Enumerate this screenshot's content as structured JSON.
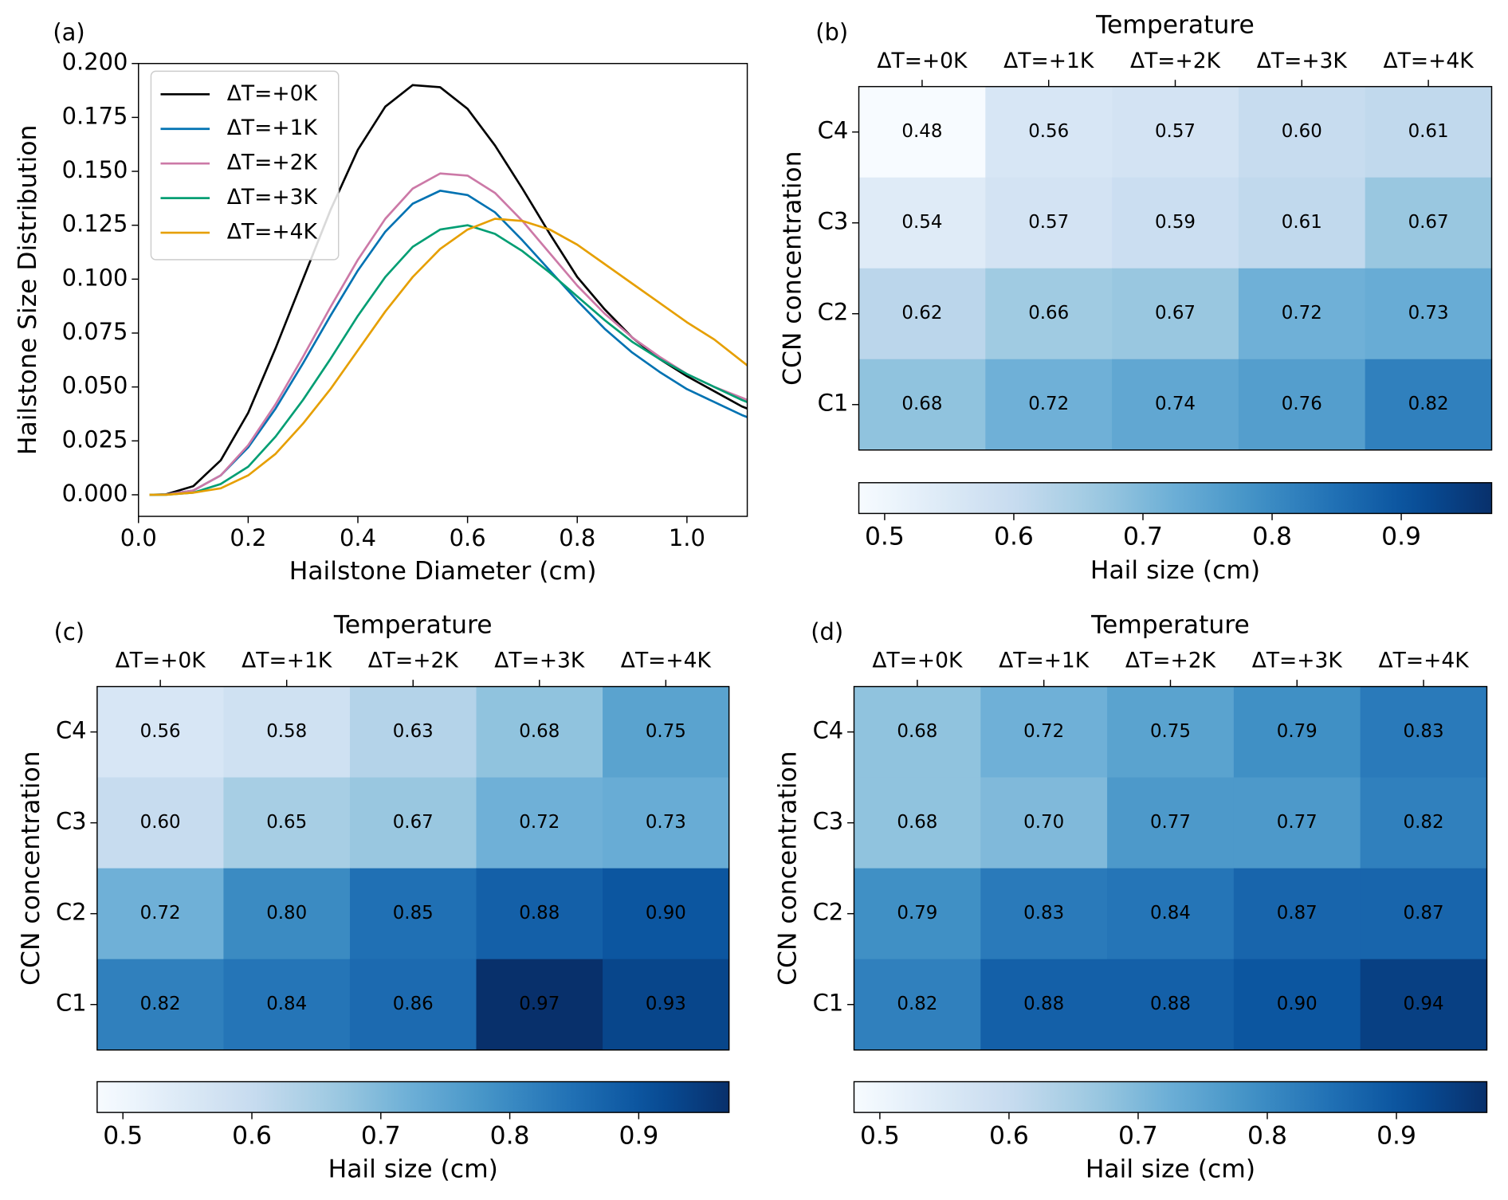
{
  "chart_data": [
    {
      "type": "line",
      "panel_label": "(a)",
      "xlabel": "Hailstone Diameter (cm)",
      "ylabel": "Hailstone Size Distribution",
      "x": [
        0.02,
        0.05,
        0.1,
        0.15,
        0.2,
        0.25,
        0.3,
        0.35,
        0.4,
        0.45,
        0.5,
        0.55,
        0.6,
        0.65,
        0.7,
        0.75,
        0.8,
        0.85,
        0.9,
        0.95,
        1.0,
        1.05,
        1.1,
        1.11
      ],
      "series": [
        {
          "name": "ΔT=+0K",
          "color": "#000000",
          "values": [
            0,
            0.0002,
            0.004,
            0.016,
            0.038,
            0.068,
            0.1,
            0.132,
            0.16,
            0.18,
            0.19,
            0.189,
            0.179,
            0.162,
            0.142,
            0.121,
            0.101,
            0.086,
            0.073,
            0.063,
            0.055,
            0.048,
            0.041,
            0.04
          ]
        },
        {
          "name": "ΔT=+1K",
          "color": "#0072b2",
          "values": [
            0,
            0.0001,
            0.002,
            0.009,
            0.022,
            0.04,
            0.061,
            0.083,
            0.104,
            0.122,
            0.135,
            0.141,
            0.139,
            0.131,
            0.118,
            0.104,
            0.09,
            0.077,
            0.066,
            0.057,
            0.049,
            0.043,
            0.037,
            0.036
          ]
        },
        {
          "name": "ΔT=+2K",
          "color": "#cc79a7",
          "values": [
            0,
            0.0001,
            0.002,
            0.009,
            0.023,
            0.042,
            0.064,
            0.087,
            0.109,
            0.128,
            0.142,
            0.149,
            0.148,
            0.14,
            0.127,
            0.112,
            0.097,
            0.084,
            0.073,
            0.064,
            0.056,
            0.05,
            0.045,
            0.044
          ]
        },
        {
          "name": "ΔT=+3K",
          "color": "#009e73",
          "values": [
            0,
            0,
            0.001,
            0.005,
            0.013,
            0.027,
            0.044,
            0.063,
            0.083,
            0.101,
            0.115,
            0.123,
            0.125,
            0.121,
            0.113,
            0.103,
            0.092,
            0.081,
            0.071,
            0.063,
            0.056,
            0.05,
            0.044,
            0.043
          ]
        },
        {
          "name": "ΔT=+4K",
          "color": "#e69f00",
          "values": [
            0,
            0,
            0.001,
            0.003,
            0.009,
            0.019,
            0.033,
            0.049,
            0.067,
            0.085,
            0.101,
            0.114,
            0.123,
            0.128,
            0.127,
            0.123,
            0.116,
            0.107,
            0.098,
            0.089,
            0.08,
            0.072,
            0.062,
            0.06
          ]
        }
      ],
      "xlim": [
        0,
        1.11
      ],
      "ylim": [
        -0.01,
        0.2
      ],
      "xticks": [
        {
          "value": 0,
          "label": "0.0"
        },
        {
          "value": 0.2,
          "label": "0.2"
        },
        {
          "value": 0.4,
          "label": "0.4"
        },
        {
          "value": 0.6,
          "label": "0.6"
        },
        {
          "value": 0.8,
          "label": "0.8"
        },
        {
          "value": 1,
          "label": "1.0"
        }
      ],
      "yticks": [
        {
          "value": 0,
          "label": "0.000"
        },
        {
          "value": 0.025,
          "label": "0.025"
        },
        {
          "value": 0.05,
          "label": "0.050"
        },
        {
          "value": 0.075,
          "label": "0.075"
        },
        {
          "value": 0.1,
          "label": "0.100"
        },
        {
          "value": 0.125,
          "label": "0.125"
        },
        {
          "value": 0.15,
          "label": "0.150"
        },
        {
          "value": 0.175,
          "label": "0.175"
        },
        {
          "value": 0.2,
          "label": "0.200"
        }
      ],
      "legend": "upper left"
    },
    {
      "type": "heatmap",
      "panel_label": "(b)",
      "title": "Temperature",
      "ylabel": "CCN concentration",
      "categories": [
        "ΔT=+0K",
        "ΔT=+1K",
        "ΔT=+2K",
        "ΔT=+3K",
        "ΔT=+4K"
      ],
      "rows": [
        "C4",
        "C3",
        "C2",
        "C1"
      ],
      "values": [
        [
          0.48,
          0.56,
          0.57,
          0.6,
          0.61
        ],
        [
          0.54,
          0.57,
          0.59,
          0.61,
          0.67
        ],
        [
          0.62,
          0.66,
          0.67,
          0.72,
          0.73
        ],
        [
          0.68,
          0.72,
          0.74,
          0.76,
          0.82
        ]
      ],
      "value_labels": [
        [
          "0.48",
          "0.56",
          "0.57",
          "0.60",
          "0.61"
        ],
        [
          "0.54",
          "0.57",
          "0.59",
          "0.61",
          "0.67"
        ],
        [
          "0.62",
          "0.66",
          "0.67",
          "0.72",
          "0.73"
        ],
        [
          "0.68",
          "0.72",
          "0.74",
          "0.76",
          "0.82"
        ]
      ],
      "colorbar": {
        "label": "Hail size (cm)",
        "clim": [
          0.48,
          0.97
        ],
        "ticks": [
          0.5,
          0.6,
          0.7,
          0.8,
          0.9
        ],
        "cmap": "Blues"
      }
    },
    {
      "type": "heatmap",
      "panel_label": "(c)",
      "title": "Temperature",
      "ylabel": "CCN concentration",
      "categories": [
        "ΔT=+0K",
        "ΔT=+1K",
        "ΔT=+2K",
        "ΔT=+3K",
        "ΔT=+4K"
      ],
      "rows": [
        "C4",
        "C3",
        "C2",
        "C1"
      ],
      "values": [
        [
          0.56,
          0.58,
          0.63,
          0.68,
          0.75
        ],
        [
          0.6,
          0.65,
          0.67,
          0.72,
          0.73
        ],
        [
          0.72,
          0.8,
          0.85,
          0.88,
          0.9
        ],
        [
          0.82,
          0.84,
          0.86,
          0.97,
          0.93
        ]
      ],
      "value_labels": [
        [
          "0.56",
          "0.58",
          "0.63",
          "0.68",
          "0.75"
        ],
        [
          "0.60",
          "0.65",
          "0.67",
          "0.72",
          "0.73"
        ],
        [
          "0.72",
          "0.80",
          "0.85",
          "0.88",
          "0.90"
        ],
        [
          "0.82",
          "0.84",
          "0.86",
          "0.97",
          "0.93"
        ]
      ],
      "colorbar": {
        "label": "Hail size (cm)",
        "clim": [
          0.48,
          0.97
        ],
        "ticks": [
          0.5,
          0.6,
          0.7,
          0.8,
          0.9
        ],
        "cmap": "Blues"
      }
    },
    {
      "type": "heatmap",
      "panel_label": "(d)",
      "title": "Temperature",
      "ylabel": "CCN concentration",
      "categories": [
        "ΔT=+0K",
        "ΔT=+1K",
        "ΔT=+2K",
        "ΔT=+3K",
        "ΔT=+4K"
      ],
      "rows": [
        "C4",
        "C3",
        "C2",
        "C1"
      ],
      "values": [
        [
          0.68,
          0.72,
          0.75,
          0.79,
          0.83
        ],
        [
          0.68,
          0.7,
          0.77,
          0.77,
          0.82
        ],
        [
          0.79,
          0.83,
          0.84,
          0.87,
          0.87
        ],
        [
          0.82,
          0.88,
          0.88,
          0.9,
          0.94
        ]
      ],
      "value_labels": [
        [
          "0.68",
          "0.72",
          "0.75",
          "0.79",
          "0.83"
        ],
        [
          "0.68",
          "0.70",
          "0.77",
          "0.77",
          "0.82"
        ],
        [
          "0.79",
          "0.83",
          "0.84",
          "0.87",
          "0.87"
        ],
        [
          "0.82",
          "0.88",
          "0.88",
          "0.90",
          "0.94"
        ]
      ],
      "colorbar": {
        "label": "Hail size (cm)",
        "clim": [
          0.48,
          0.97
        ],
        "ticks": [
          0.5,
          0.6,
          0.7,
          0.8,
          0.9
        ],
        "cmap": "Blues"
      }
    }
  ]
}
